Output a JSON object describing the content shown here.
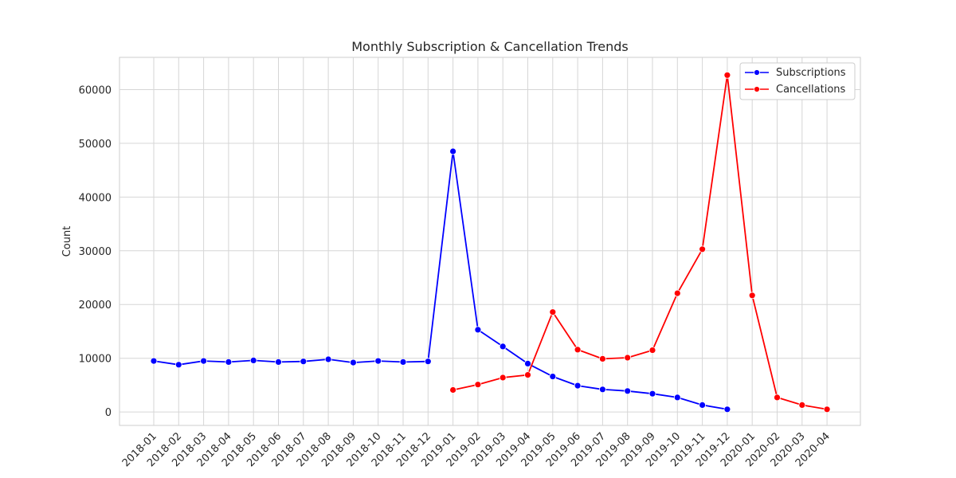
{
  "chart_data": {
    "type": "line",
    "title": "Monthly Subscription & Cancellation Trends",
    "xlabel": "",
    "ylabel": "Count",
    "ylim": [
      -2500,
      66000
    ],
    "y_ticks": [
      0,
      10000,
      20000,
      30000,
      40000,
      50000,
      60000
    ],
    "grid": true,
    "legend_position": "top-right",
    "categories": [
      "2018-01",
      "2018-02",
      "2018-03",
      "2018-04",
      "2018-05",
      "2018-06",
      "2018-07",
      "2018-08",
      "2018-09",
      "2018-10",
      "2018-11",
      "2018-12",
      "2019-01",
      "2019-02",
      "2019-03",
      "2019-04",
      "2019-05",
      "2019-06",
      "2019-07",
      "2019-08",
      "2019-09",
      "2019-10",
      "2019-11",
      "2019-12",
      "2020-01",
      "2020-02",
      "2020-03",
      "2020-04"
    ],
    "series": [
      {
        "name": "Subscriptions",
        "color": "#0000ff",
        "values": [
          9500,
          8800,
          9500,
          9300,
          9600,
          9300,
          9400,
          9800,
          9200,
          9500,
          9300,
          9400,
          48500,
          15300,
          12200,
          9000,
          6600,
          4900,
          4200,
          3900,
          3400,
          2700,
          1300,
          500,
          null,
          null,
          null,
          null
        ]
      },
      {
        "name": "Cancellations",
        "color": "#ff0000",
        "values": [
          null,
          null,
          null,
          null,
          null,
          null,
          null,
          null,
          null,
          null,
          null,
          null,
          4100,
          5100,
          6400,
          6900,
          18600,
          11600,
          9900,
          10100,
          11500,
          22100,
          30300,
          62700,
          21700,
          2700,
          1300,
          500
        ]
      }
    ]
  }
}
